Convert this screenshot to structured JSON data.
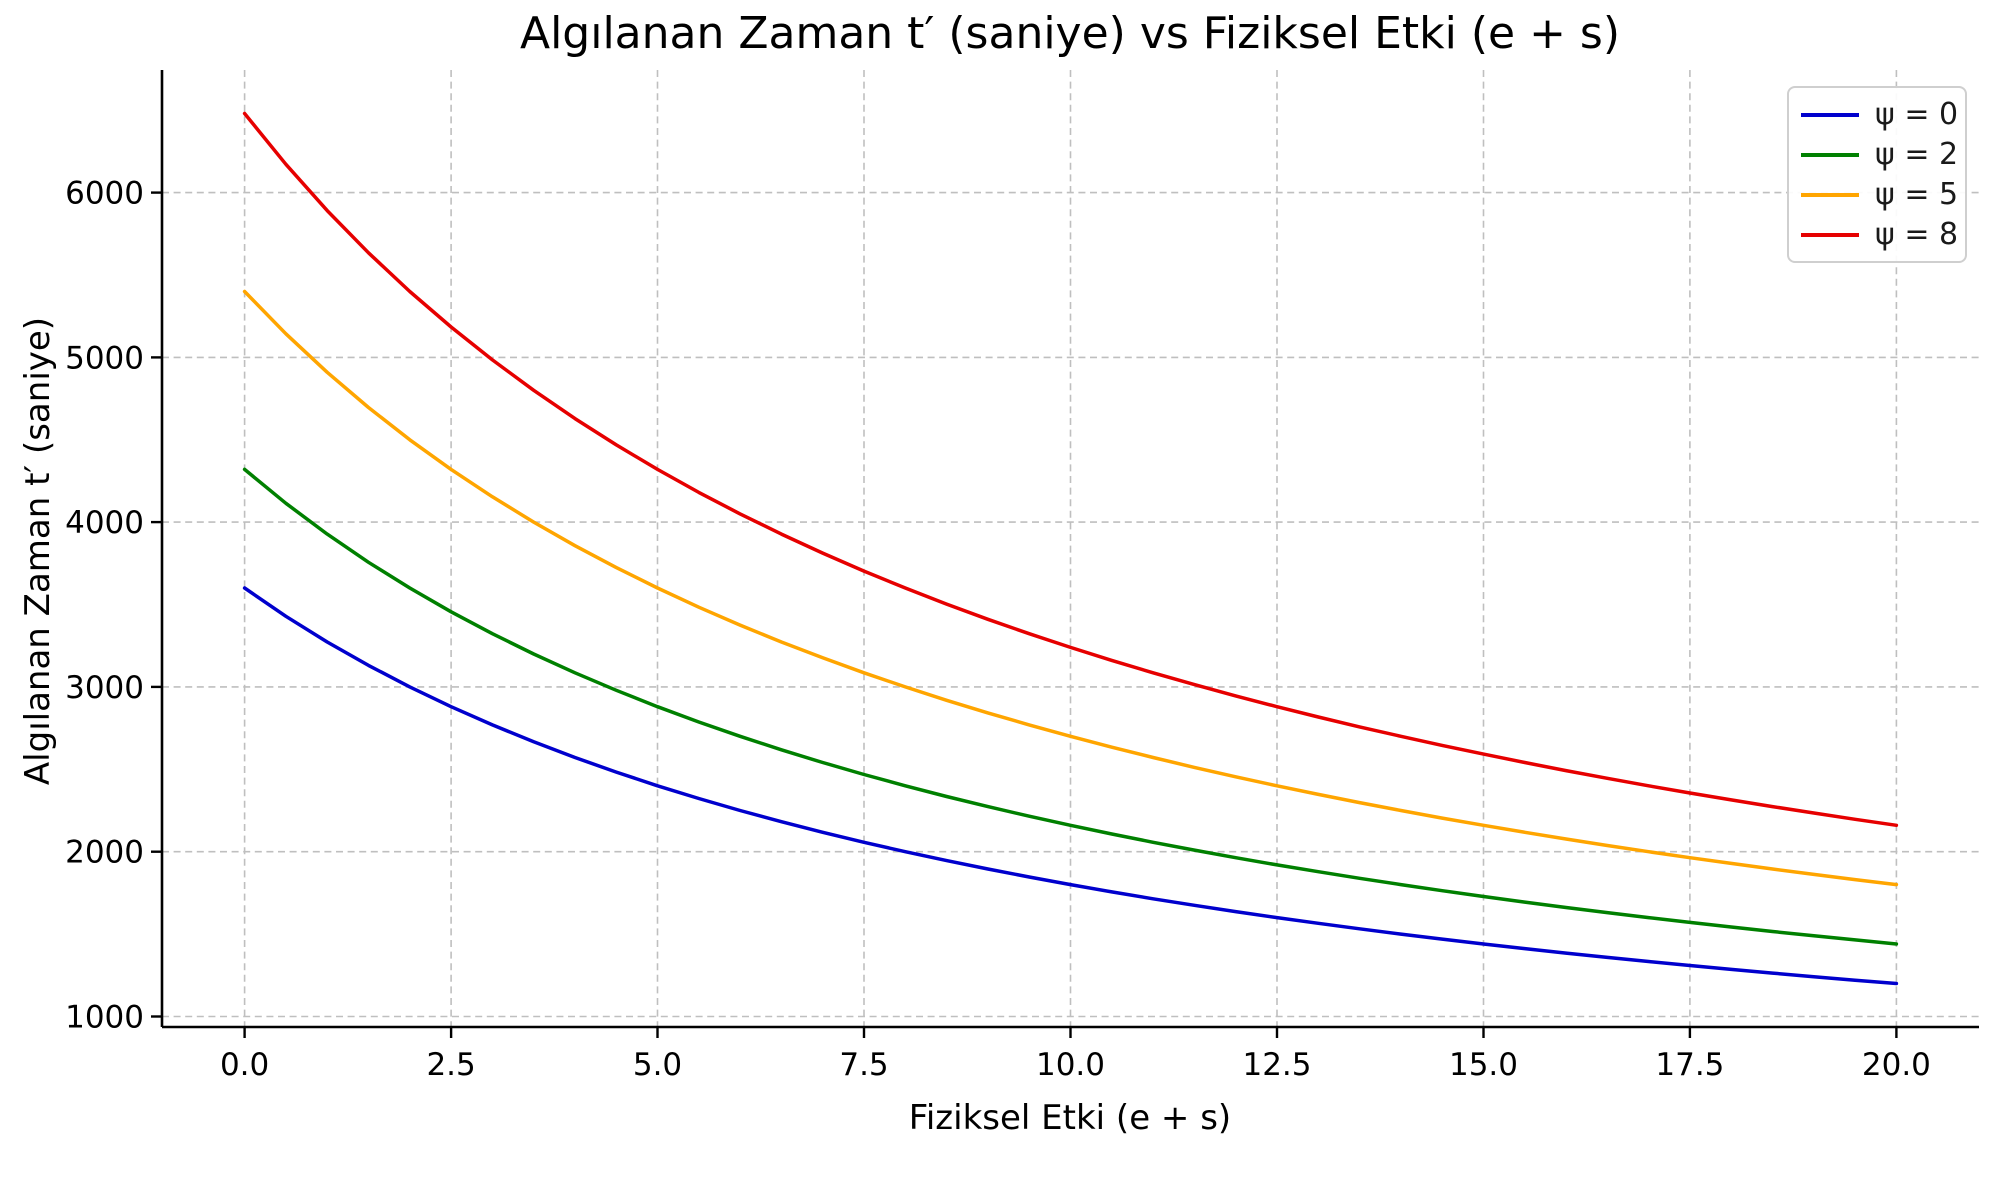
{
  "chart_data": {
    "type": "line",
    "title": "Algılanan Zaman t′ (saniye) vs Fiziksel Etki (e + s)",
    "xlabel": "Fiziksel Etki (e + s)",
    "ylabel": "Algılanan Zaman t′ (saniye)",
    "xlim": [
      -1,
      21
    ],
    "ylim": [
      936,
      6744
    ],
    "x_ticks": [
      0,
      2.5,
      5,
      7.5,
      10,
      12.5,
      15,
      17.5,
      20
    ],
    "x_tick_labels": [
      "0.0",
      "2.5",
      "5.0",
      "7.5",
      "10.0",
      "12.5",
      "15.0",
      "17.5",
      "20.0"
    ],
    "y_ticks": [
      1000,
      2000,
      3000,
      4000,
      5000,
      6000
    ],
    "y_tick_labels": [
      "1000",
      "2000",
      "3000",
      "4000",
      "5000",
      "6000"
    ],
    "grid": true,
    "grid_color": "#bfbfbf",
    "legend_position": "upper right",
    "x": [
      0,
      0.5,
      1,
      1.5,
      2,
      2.5,
      3,
      3.5,
      4,
      4.5,
      5,
      5.5,
      6,
      6.5,
      7,
      7.5,
      8,
      8.5,
      9,
      9.5,
      10,
      10.5,
      11,
      11.5,
      12,
      12.5,
      13,
      13.5,
      14,
      14.5,
      15,
      15.5,
      16,
      16.5,
      17,
      17.5,
      18,
      18.5,
      19,
      19.5,
      20
    ],
    "series": [
      {
        "name": "ψ = 0",
        "color": "#0000cd",
        "values": [
          3600.0,
          3428.6,
          3272.7,
          3130.4,
          3000.0,
          2880.0,
          2769.2,
          2666.7,
          2571.4,
          2482.8,
          2400.0,
          2322.6,
          2250.0,
          2181.8,
          2117.6,
          2057.1,
          2000.0,
          1945.9,
          1894.7,
          1846.2,
          1800.0,
          1756.1,
          1714.3,
          1674.4,
          1636.4,
          1600.0,
          1565.2,
          1531.9,
          1500.0,
          1469.4,
          1440.0,
          1411.8,
          1384.6,
          1358.5,
          1333.3,
          1309.1,
          1285.7,
          1263.2,
          1241.4,
          1220.3,
          1200.0
        ]
      },
      {
        "name": "ψ = 2",
        "color": "#008000",
        "values": [
          4320.0,
          4114.3,
          3927.3,
          3756.5,
          3600.0,
          3456.0,
          3323.1,
          3200.0,
          3085.7,
          2979.3,
          2880.0,
          2787.1,
          2700.0,
          2618.2,
          2541.2,
          2468.6,
          2400.0,
          2335.1,
          2273.7,
          2215.4,
          2160.0,
          2107.3,
          2057.1,
          2009.3,
          1963.6,
          1920.0,
          1878.3,
          1838.3,
          1800.0,
          1763.3,
          1728.0,
          1694.1,
          1661.5,
          1630.2,
          1600.0,
          1570.9,
          1542.9,
          1515.8,
          1489.7,
          1464.4,
          1440.0
        ]
      },
      {
        "name": "ψ = 5",
        "color": "#ffa500",
        "values": [
          5400.0,
          5142.9,
          4909.1,
          4695.7,
          4500.0,
          4320.0,
          4153.8,
          4000.0,
          3857.1,
          3724.1,
          3600.0,
          3483.9,
          3375.0,
          3272.7,
          3176.5,
          3085.7,
          3000.0,
          2918.9,
          2842.1,
          2769.2,
          2700.0,
          2634.1,
          2571.4,
          2511.6,
          2454.5,
          2400.0,
          2347.8,
          2297.9,
          2250.0,
          2204.1,
          2160.0,
          2117.6,
          2076.9,
          2037.7,
          2000.0,
          1963.6,
          1928.6,
          1894.7,
          1862.1,
          1830.5,
          1800.0
        ]
      },
      {
        "name": "ψ = 8",
        "color": "#e60000",
        "values": [
          6480.0,
          6171.4,
          5890.9,
          5634.8,
          5400.0,
          5184.0,
          4984.6,
          4800.0,
          4628.6,
          4468.9,
          4320.0,
          4180.6,
          4050.0,
          3927.3,
          3811.8,
          3702.9,
          3600.0,
          3502.7,
          3410.5,
          3323.1,
          3240.0,
          3161.0,
          3085.7,
          3013.9,
          2945.5,
          2880.0,
          2817.4,
          2757.4,
          2700.0,
          2644.9,
          2592.0,
          2541.2,
          2492.3,
          2445.3,
          2400.0,
          2356.4,
          2314.3,
          2273.7,
          2234.5,
          2196.6,
          2160.0
        ]
      }
    ]
  }
}
